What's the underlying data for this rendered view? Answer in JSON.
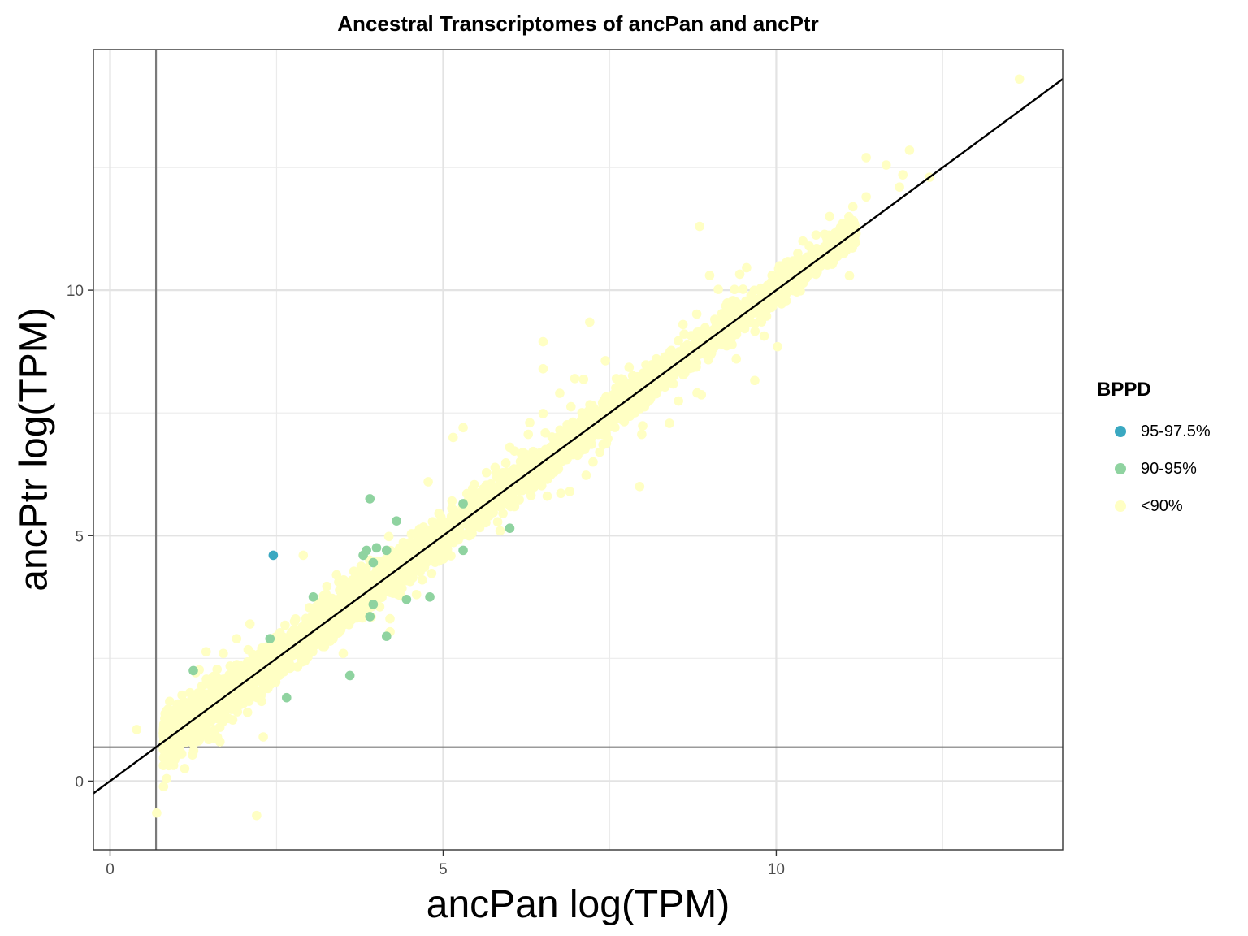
{
  "chart_data": {
    "type": "scatter",
    "title": "Ancestral Transcriptomes of ancPan and ancPtr",
    "xlabel": "ancPan log(TPM)",
    "ylabel": "ancPtr log(TPM)",
    "xlim": [
      -0.25,
      14.3
    ],
    "ylim": [
      -1.4,
      14.9
    ],
    "x_ticks": [
      0,
      5,
      10
    ],
    "y_ticks": [
      0,
      5,
      10
    ],
    "x_tick_labels": [
      "0",
      "5",
      "10"
    ],
    "y_tick_labels": [
      "0",
      "5",
      "10"
    ],
    "grid": true,
    "legend_placement": "right",
    "reference_lines": {
      "vertical_x": 0.69,
      "horizontal_y": 0.69,
      "diagonal": "y = x"
    },
    "legend": {
      "title": "BPPD",
      "entries": [
        {
          "label": "95-97.5%",
          "color": "#3aa8c1"
        },
        {
          "label": "90-95%",
          "color": "#8fd3a0"
        },
        {
          "label": "<90%",
          "color": "#ffffc4"
        }
      ]
    },
    "series": [
      {
        "name": "95-97.5%",
        "color": "#3aa8c1",
        "points": [
          [
            2.45,
            4.6
          ]
        ]
      },
      {
        "name": "90-95%",
        "color": "#8fd3a0",
        "points": [
          [
            1.25,
            2.25
          ],
          [
            2.4,
            2.9
          ],
          [
            2.65,
            1.7
          ],
          [
            3.05,
            3.75
          ],
          [
            3.6,
            2.15
          ],
          [
            3.9,
            5.75
          ],
          [
            3.95,
            4.45
          ],
          [
            3.95,
            3.6
          ],
          [
            3.9,
            3.35
          ],
          [
            4.0,
            4.75
          ],
          [
            3.8,
            4.6
          ],
          [
            3.85,
            4.7
          ],
          [
            4.15,
            2.95
          ],
          [
            4.15,
            4.7
          ],
          [
            4.3,
            5.3
          ],
          [
            4.45,
            3.7
          ],
          [
            4.8,
            3.75
          ],
          [
            5.3,
            5.65
          ],
          [
            5.3,
            4.7
          ],
          [
            6.0,
            5.15
          ]
        ]
      },
      {
        "name": "<90%",
        "color": "#ffffc4",
        "bulk": {
          "count": 3500,
          "x_range": [
            0.8,
            11.2
          ],
          "spread": 0.22,
          "seed": 7
        },
        "points": [
          [
            0.4,
            1.05
          ],
          [
            0.7,
            -0.65
          ],
          [
            0.85,
            0.05
          ],
          [
            0.85,
            0.35
          ],
          [
            0.95,
            0.55
          ],
          [
            2.2,
            -0.7
          ],
          [
            2.3,
            0.9
          ],
          [
            1.65,
            0.8
          ],
          [
            2.1,
            3.2
          ],
          [
            2.9,
            4.6
          ],
          [
            3.5,
            2.6
          ],
          [
            3.4,
            4.2
          ],
          [
            5.15,
            7.0
          ],
          [
            5.3,
            7.2
          ],
          [
            6.0,
            6.8
          ],
          [
            6.3,
            7.3
          ],
          [
            6.5,
            8.95
          ],
          [
            6.5,
            8.4
          ],
          [
            6.75,
            7.9
          ],
          [
            6.9,
            5.9
          ],
          [
            7.2,
            9.35
          ],
          [
            7.35,
            6.7
          ],
          [
            7.25,
            6.5
          ],
          [
            7.95,
            6.0
          ],
          [
            8.85,
            11.3
          ],
          [
            9.0,
            10.3
          ],
          [
            9.4,
            8.6
          ],
          [
            10.1,
            10.5
          ],
          [
            10.4,
            11.0
          ],
          [
            11.35,
            11.9
          ],
          [
            11.15,
            11.7
          ],
          [
            11.35,
            12.7
          ],
          [
            11.65,
            12.55
          ],
          [
            11.9,
            12.35
          ],
          [
            11.85,
            12.1
          ],
          [
            12.0,
            12.85
          ],
          [
            12.3,
            12.3
          ],
          [
            13.65,
            14.3
          ],
          [
            10.8,
            11.5
          ],
          [
            11.0,
            11.1
          ],
          [
            9.7,
            9.6
          ],
          [
            8.6,
            9.3
          ],
          [
            8.2,
            8.6
          ],
          [
            7.6,
            8.2
          ],
          [
            5.6,
            5.95
          ],
          [
            4.6,
            3.8
          ],
          [
            1.7,
            2.6
          ],
          [
            1.9,
            2.9
          ],
          [
            2.7,
            2.3
          ],
          [
            1.05,
            1.5
          ]
        ]
      }
    ]
  }
}
